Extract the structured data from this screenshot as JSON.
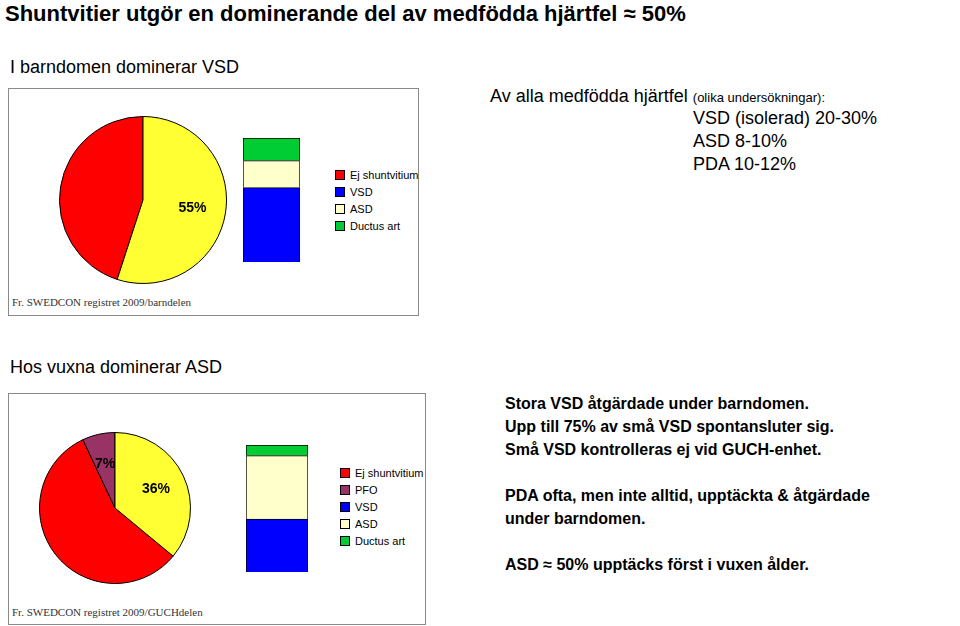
{
  "title": "Shuntvitier utgör en dominerande del av medfödda hjärtfel ≈ 50%",
  "chart_data": [
    {
      "type": "pie",
      "title": "I barndomen dominerar VSD",
      "annotations": [
        "Fr. SWEDCON registret 2009/barndelen"
      ],
      "categories": [
        "Ej shuntvitium",
        null
      ],
      "values": [
        45,
        55
      ],
      "value_labels": [
        null,
        "55%"
      ],
      "colors": [
        "#ff0000",
        "#ffff33"
      ],
      "data_labels": true
    },
    {
      "type": "bar",
      "stacked": true,
      "categories": [
        null
      ],
      "ylim": [
        0,
        55
      ],
      "tick_labels": false,
      "grid": false,
      "legend": "right",
      "series": [
        {
          "name": "VSD",
          "color": "#0000ff",
          "values": [
            33
          ]
        },
        {
          "name": "ASD",
          "color": "#ffffcc",
          "values": [
            12
          ]
        },
        {
          "name": "Ductus art",
          "color": "#00cc33",
          "values": [
            10
          ]
        }
      ]
    },
    {
      "type": "pie",
      "title": "Hos vuxna dominerar ASD",
      "annotations": [
        "Fr. SWEDCON registret 2009/GUCHdelen"
      ],
      "categories": [
        "Ej shuntvitium",
        "PFO",
        null
      ],
      "values": [
        57,
        7,
        36
      ],
      "value_labels": [
        null,
        "7%",
        "36%"
      ],
      "colors": [
        "#ff0000",
        "#993366",
        "#ffff33"
      ],
      "data_labels": true
    },
    {
      "type": "bar",
      "stacked": true,
      "categories": [
        null
      ],
      "ylim": [
        0,
        36
      ],
      "tick_labels": false,
      "grid": false,
      "legend": "right",
      "series": [
        {
          "name": "VSD",
          "color": "#0000ff",
          "values": [
            15
          ]
        },
        {
          "name": "ASD",
          "color": "#ffffcc",
          "values": [
            18
          ]
        },
        {
          "name": "Ductus art",
          "color": "#00cc33",
          "values": [
            3
          ]
        }
      ]
    }
  ],
  "notes": [
    {
      "heading": "Av alla medfödda hjärtfel",
      "heading_note": "(olika undersökningar):",
      "lines": [
        "VSD (isolerad) 20-30%",
        "ASD 8-10%",
        "PDA 10-12%"
      ]
    },
    {
      "paragraphs": [
        [
          "Stora VSD åtgärdade under barndomen.",
          "Upp till 75% av små VSD spontansluter sig.",
          "Små VSD kontrolleras ej vid GUCH-enhet."
        ],
        [
          "PDA ofta, men inte alltid, upptäckta & åtgärdade",
          "under barndomen."
        ],
        [
          "ASD ≈ 50% upptäcks först i vuxen ålder."
        ]
      ]
    }
  ]
}
